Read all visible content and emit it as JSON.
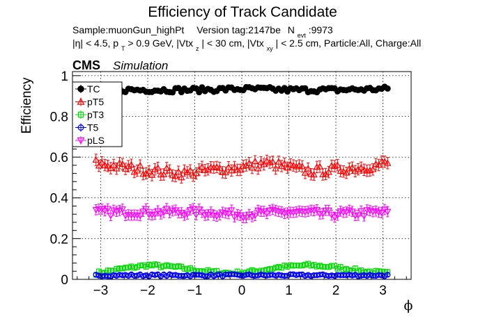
{
  "chart_data": {
    "type": "scatter",
    "title": "Efficiency of Track Candidate",
    "subtitle_line1": {
      "sample": "Sample:muonGun_highPt",
      "version": "Version tag:2147be",
      "nevt_label": "N",
      "nevt_sub": "evt",
      "nevt_value": ":9973"
    },
    "subtitle_line2": {
      "eta": "|η| < 4.5, p",
      "pt_sub": "T",
      "pt": " > 0.9 GeV, |Vtx",
      "z_sub": "z",
      "vtxz": "| < 30 cm, |Vtx",
      "xy_sub": "xy",
      "rest": "| < 2.5 cm, Particle:All, Charge:All"
    },
    "cms_label": "CMS",
    "sim_label": "Simulation",
    "xlabel": "ϕ",
    "ylabel": "Efficiency",
    "xlim": [
      -3.6,
      3.6
    ],
    "ylim": [
      0,
      1.02
    ],
    "xticks": [
      -3,
      -2,
      -1,
      0,
      1,
      2,
      3
    ],
    "xtick_labels": [
      "−3",
      "−2",
      "−1",
      "0",
      "1",
      "2",
      "3"
    ],
    "yticks": [
      0,
      0.2,
      0.4,
      0.6,
      0.8,
      1
    ],
    "ytick_labels": [
      "0",
      "0.2",
      "0.4",
      "0.6",
      "0.8",
      "1"
    ],
    "grid": true,
    "legend_position": "top-left",
    "series": [
      {
        "name": "TC",
        "color": "#000000",
        "marker": "filled-circle",
        "x_range": [
          -3.1,
          3.1
        ],
        "points": 100,
        "y_profile": [
          [
            -3.1,
            0.93
          ],
          [
            -2,
            0.93
          ],
          [
            -1,
            0.93
          ],
          [
            0,
            0.935
          ],
          [
            1,
            0.93
          ],
          [
            2,
            0.93
          ],
          [
            3.1,
            0.935
          ]
        ],
        "noise": 0.012,
        "err": 0.012
      },
      {
        "name": "pT5",
        "color": "#ff0000",
        "marker": "open-triangle",
        "x_range": [
          -3.1,
          3.1
        ],
        "points": 100,
        "y_profile": [
          [
            -3.1,
            0.57
          ],
          [
            -2.5,
            0.55
          ],
          [
            -1.8,
            0.53
          ],
          [
            -1.2,
            0.52
          ],
          [
            -0.6,
            0.54
          ],
          [
            0,
            0.55
          ],
          [
            0.5,
            0.57
          ],
          [
            1.0,
            0.55
          ],
          [
            1.5,
            0.53
          ],
          [
            2.0,
            0.54
          ],
          [
            2.6,
            0.55
          ],
          [
            3.1,
            0.57
          ]
        ],
        "noise": 0.022,
        "err": 0.028
      },
      {
        "name": "pT3",
        "color": "#00dd00",
        "marker": "open-square",
        "x_range": [
          -3.1,
          3.1
        ],
        "points": 100,
        "y_profile": [
          [
            -3.1,
            0.03
          ],
          [
            -2.6,
            0.05
          ],
          [
            -2,
            0.07
          ],
          [
            -1.4,
            0.06
          ],
          [
            -0.8,
            0.04
          ],
          [
            -0.2,
            0.03
          ],
          [
            0.3,
            0.04
          ],
          [
            0.8,
            0.06
          ],
          [
            1.4,
            0.07
          ],
          [
            2.0,
            0.06
          ],
          [
            2.6,
            0.04
          ],
          [
            3.1,
            0.03
          ]
        ],
        "noise": 0.008,
        "err": 0.012
      },
      {
        "name": "T5",
        "color": "#0000ff",
        "marker": "open-circle",
        "x_range": [
          -3.1,
          3.1
        ],
        "points": 100,
        "y_profile": [
          [
            -3.1,
            0.02
          ],
          [
            0,
            0.02
          ],
          [
            3.1,
            0.02
          ]
        ],
        "noise": 0.005,
        "err": 0.008
      },
      {
        "name": "pLS",
        "color": "#ff00ff",
        "marker": "open-triangle-down",
        "x_range": [
          -3.1,
          3.1
        ],
        "points": 100,
        "y_profile": [
          [
            -3.1,
            0.33
          ],
          [
            -2,
            0.33
          ],
          [
            -1,
            0.33
          ],
          [
            0,
            0.32
          ],
          [
            1,
            0.33
          ],
          [
            2,
            0.32
          ],
          [
            3.1,
            0.33
          ]
        ],
        "noise": 0.018,
        "err": 0.025
      }
    ]
  }
}
